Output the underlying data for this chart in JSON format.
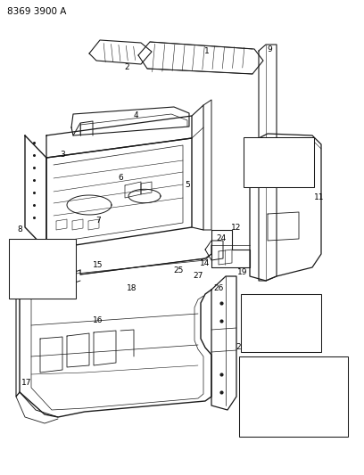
{
  "title": "8369 3900 A",
  "bg_color": "#ffffff",
  "fig_width": 4.08,
  "fig_height": 5.33,
  "dpi": 100,
  "line_color": "#1a1a1a",
  "text_color": "#000000",
  "font_size": 6.5
}
